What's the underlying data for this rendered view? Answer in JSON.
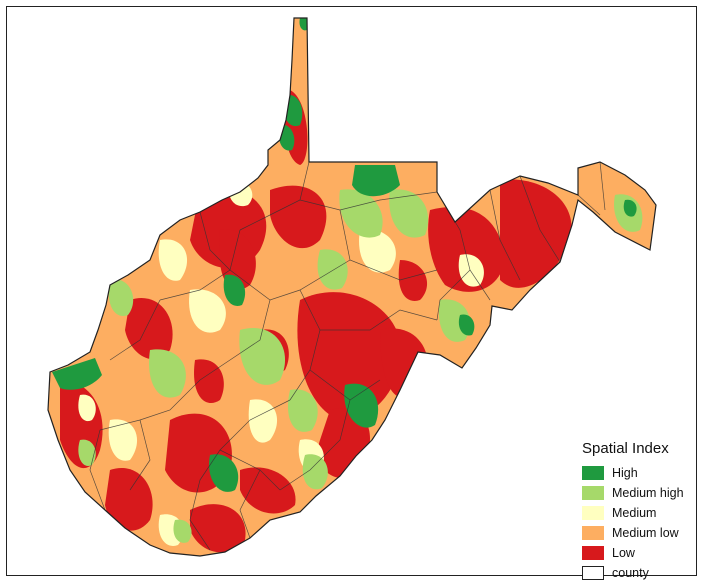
{
  "map": {
    "legend": {
      "title": "Spatial Index",
      "items": [
        {
          "label": "High",
          "color": "#1f9a3f"
        },
        {
          "label": "Medium high",
          "color": "#a6d96a"
        },
        {
          "label": "Medium",
          "color": "#ffffc0"
        },
        {
          "label": "Medium low",
          "color": "#fdae61"
        },
        {
          "label": "Low",
          "color": "#d7191c"
        },
        {
          "label": "county",
          "color": "#ffffff",
          "outline": "#222222"
        }
      ]
    },
    "region_colors": {
      "high": "#1f9a3f",
      "medium_high": "#a6d96a",
      "medium": "#ffffc0",
      "medium_low": "#fdae61",
      "low": "#d7191c",
      "county_border": "#333333"
    }
  }
}
